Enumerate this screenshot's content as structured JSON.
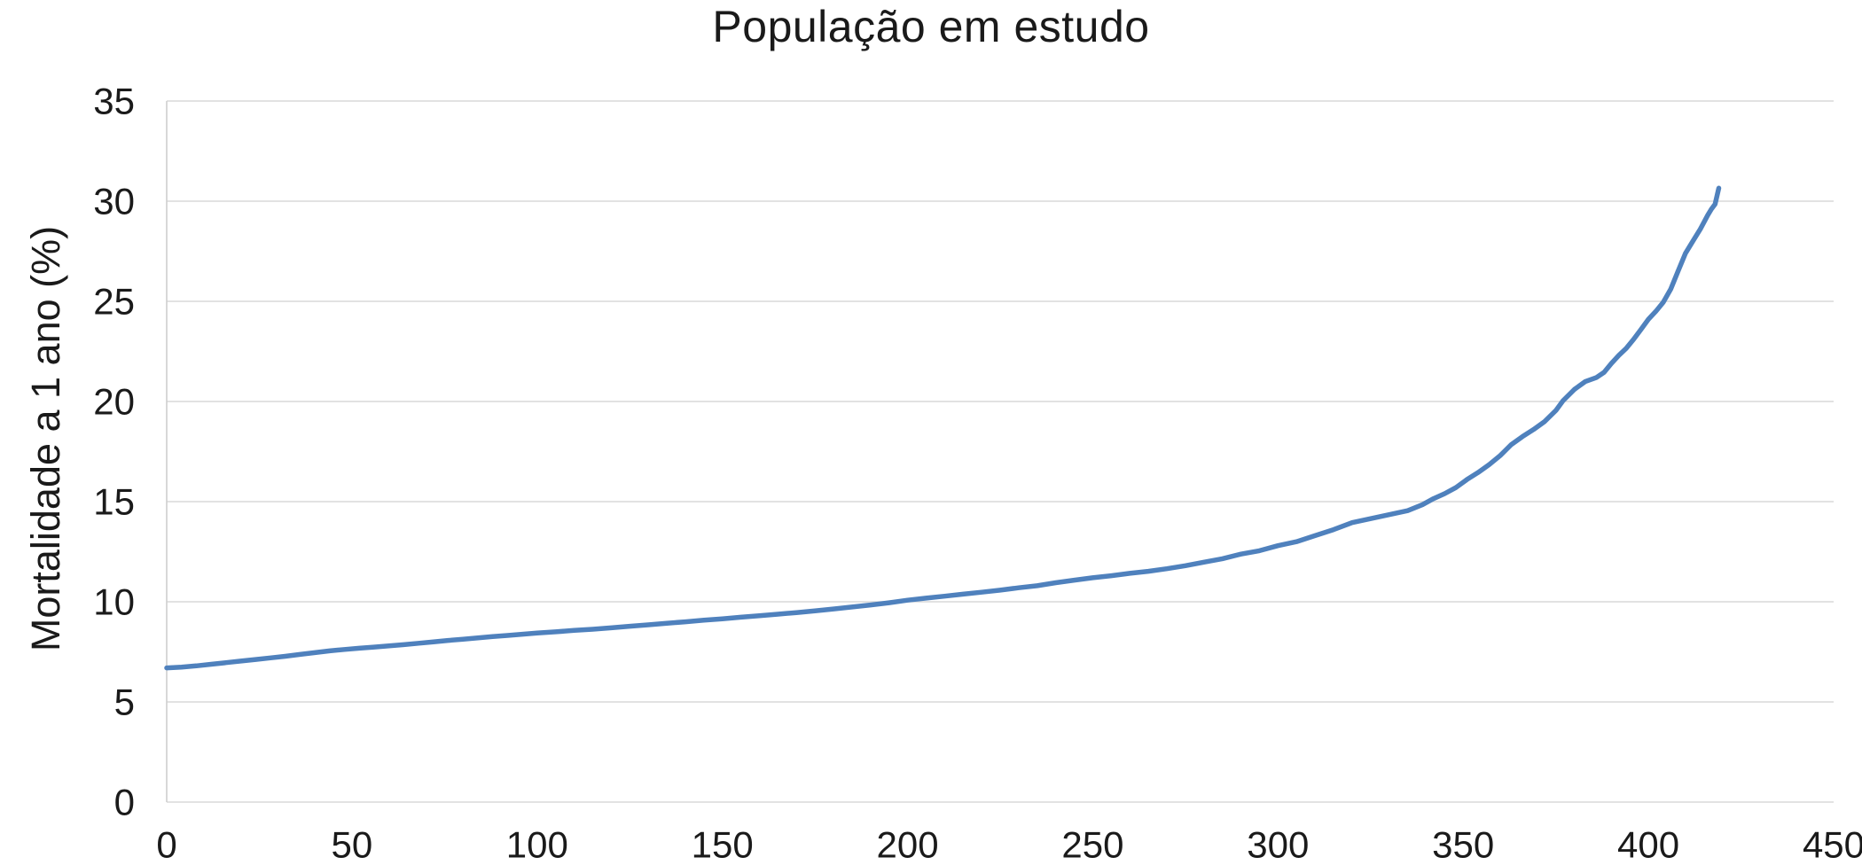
{
  "figure": {
    "title": "População em estudo",
    "y_axis_title": "Mortalidade a 1 ano (%)"
  },
  "chart_data": {
    "type": "line",
    "title": "População em estudo",
    "xlabel": "",
    "ylabel": "Mortalidade a 1 ano (%)",
    "xlim": [
      0,
      450
    ],
    "ylim": [
      0,
      35
    ],
    "x_ticks": [
      0,
      50,
      100,
      150,
      200,
      250,
      300,
      350,
      400,
      450
    ],
    "y_ticks": [
      0,
      5,
      10,
      15,
      20,
      25,
      30,
      35
    ],
    "grid": "horizontal",
    "legend_position": "none",
    "colors": {
      "line": "#4F81BD",
      "gridline": "#D9D9D9",
      "axis": "#CFCFCF",
      "text": "#1A1A1A",
      "background": "#FFFFFF"
    },
    "series": [
      {
        "x": [
          0,
          4,
          8,
          12,
          16,
          20,
          24,
          28,
          32,
          36,
          40,
          44,
          48,
          52,
          56,
          60,
          64,
          68,
          72,
          76,
          80,
          84,
          88,
          92,
          96,
          100,
          105,
          110,
          115,
          120,
          125,
          130,
          135,
          140,
          145,
          150,
          155,
          160,
          165,
          170,
          175,
          180,
          185,
          190,
          195,
          200,
          205,
          210,
          215,
          220,
          225,
          230,
          235,
          240,
          245,
          250,
          255,
          260,
          265,
          270,
          275,
          280,
          285,
          290,
          295,
          300,
          305,
          310,
          315,
          320,
          325,
          330,
          335,
          339,
          342,
          345,
          348,
          351,
          354,
          357,
          360,
          363,
          366,
          369,
          372,
          375,
          377,
          380,
          383,
          386,
          388,
          390,
          392,
          394,
          396,
          398,
          400,
          402,
          404,
          406,
          408,
          410,
          412,
          414,
          416,
          417,
          418,
          419
        ],
        "y": [
          6.7,
          6.74,
          6.8,
          6.88,
          6.96,
          7.04,
          7.12,
          7.2,
          7.28,
          7.37,
          7.46,
          7.55,
          7.62,
          7.68,
          7.74,
          7.8,
          7.86,
          7.93,
          8.0,
          8.07,
          8.13,
          8.2,
          8.26,
          8.32,
          8.38,
          8.44,
          8.5,
          8.57,
          8.63,
          8.7,
          8.78,
          8.85,
          8.93,
          9.0,
          9.08,
          9.15,
          9.23,
          9.3,
          9.38,
          9.46,
          9.55,
          9.64,
          9.74,
          9.84,
          9.95,
          10.08,
          10.18,
          10.28,
          10.38,
          10.48,
          10.58,
          10.7,
          10.8,
          10.95,
          11.08,
          11.2,
          11.3,
          11.42,
          11.52,
          11.65,
          11.8,
          11.98,
          12.15,
          12.38,
          12.55,
          12.8,
          13.0,
          13.3,
          13.6,
          13.95,
          14.15,
          14.35,
          14.55,
          14.85,
          15.15,
          15.4,
          15.7,
          16.1,
          16.45,
          16.85,
          17.3,
          17.85,
          18.25,
          18.6,
          19.0,
          19.55,
          20.05,
          20.6,
          21.0,
          21.2,
          21.45,
          21.9,
          22.3,
          22.65,
          23.1,
          23.6,
          24.1,
          24.5,
          24.95,
          25.6,
          26.5,
          27.4,
          28.0,
          28.6,
          29.3,
          29.6,
          29.85,
          30.65
        ]
      }
    ]
  }
}
